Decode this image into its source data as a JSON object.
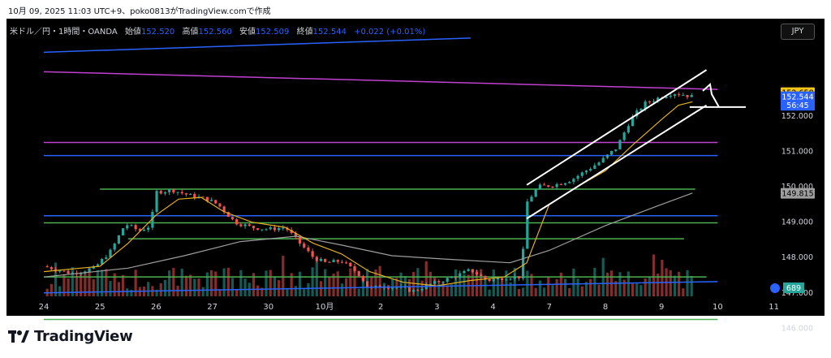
{
  "caption": "10月 09, 2025 11:03 UTC+9、poko0813がTradingView.comで作成",
  "legend": {
    "symbol": "米ドル／円・1時間・OANDA",
    "open_label": "始値",
    "open_value": "152.520",
    "high_label": "高値",
    "high_value": "152.560",
    "low_label": "安値",
    "low_value": "152.509",
    "close_label": "終値",
    "close_value": "152.544",
    "change": "+0.022 (+0.01%)"
  },
  "currency_button": "JPY",
  "brand": "TradingView",
  "colors": {
    "up": "#26a69a",
    "down": "#ef5350",
    "ma_short": "#e0b020",
    "ma_long": "#9e9e9e",
    "green_line": "#4caf50",
    "blue_line": "#2962ff",
    "magenta_line": "#c040d0",
    "channel": "#ffffff"
  },
  "chart_data": {
    "type": "candlestick",
    "symbol": "USD/JPY",
    "timeframe": "1h",
    "ylim": [
      146.1,
      153.9
    ],
    "price_ticks": [
      "152.000",
      "151.000",
      "150.000",
      "149.000",
      "148.000",
      "147.000",
      "146.000"
    ],
    "x_tick_labels": [
      "24",
      "25",
      "26",
      "27",
      "30",
      "10月",
      "2",
      "3",
      "4",
      "7",
      "8",
      "9",
      "10",
      "11"
    ],
    "close_path": [
      [
        0,
        147.75
      ],
      [
        0.5,
        147.55
      ],
      [
        0.9,
        147.7
      ],
      [
        1.2,
        148.2
      ],
      [
        1.45,
        148.95
      ],
      [
        1.7,
        148.75
      ],
      [
        1.9,
        148.9
      ],
      [
        2.0,
        149.85
      ],
      [
        2.3,
        149.9
      ],
      [
        2.6,
        149.75
      ],
      [
        2.9,
        149.65
      ],
      [
        3.1,
        149.5
      ],
      [
        3.4,
        149.0
      ],
      [
        3.7,
        148.85
      ],
      [
        4.0,
        148.8
      ],
      [
        4.3,
        148.85
      ],
      [
        4.5,
        148.5
      ],
      [
        4.8,
        148.0
      ],
      [
        5.0,
        147.85
      ],
      [
        5.3,
        147.9
      ],
      [
        5.6,
        147.55
      ],
      [
        5.8,
        147.1
      ],
      [
        6.0,
        147.2
      ],
      [
        6.3,
        147.15
      ],
      [
        6.6,
        147.05
      ],
      [
        6.8,
        147.2
      ],
      [
        7.1,
        147.35
      ],
      [
        7.3,
        147.45
      ],
      [
        7.6,
        147.65
      ],
      [
        7.9,
        147.35
      ],
      [
        8.3,
        147.45
      ],
      [
        8.5,
        147.45
      ],
      [
        8.6,
        149.55
      ],
      [
        8.8,
        150.0
      ],
      [
        9.1,
        150.05
      ],
      [
        9.4,
        150.2
      ],
      [
        9.6,
        150.4
      ],
      [
        9.9,
        150.7
      ],
      [
        10.2,
        151.1
      ],
      [
        10.45,
        151.9
      ],
      [
        10.7,
        152.35
      ],
      [
        11.0,
        152.55
      ],
      [
        11.2,
        152.65
      ],
      [
        11.4,
        152.6
      ],
      [
        11.55,
        152.54
      ]
    ],
    "ma_short_path": [
      [
        0,
        147.6
      ],
      [
        1.0,
        147.75
      ],
      [
        1.5,
        148.4
      ],
      [
        2.0,
        149.2
      ],
      [
        2.4,
        149.65
      ],
      [
        2.8,
        149.7
      ],
      [
        3.2,
        149.3
      ],
      [
        3.7,
        149.0
      ],
      [
        4.3,
        148.85
      ],
      [
        4.8,
        148.4
      ],
      [
        5.3,
        148.1
      ],
      [
        5.8,
        147.6
      ],
      [
        6.4,
        147.3
      ],
      [
        7.0,
        147.2
      ],
      [
        7.6,
        147.35
      ],
      [
        8.2,
        147.45
      ],
      [
        8.6,
        147.85
      ],
      [
        9.0,
        149.5
      ],
      [
        9.5,
        150.0
      ],
      [
        10.0,
        150.45
      ],
      [
        10.5,
        151.2
      ],
      [
        11.0,
        151.9
      ],
      [
        11.3,
        152.3
      ],
      [
        11.55,
        152.4
      ]
    ],
    "ma_long_path": [
      [
        0,
        147.45
      ],
      [
        1.5,
        147.7
      ],
      [
        2.5,
        148.05
      ],
      [
        3.5,
        148.45
      ],
      [
        4.5,
        148.6
      ],
      [
        5.3,
        148.35
      ],
      [
        6.2,
        148.05
      ],
      [
        7.2,
        147.95
      ],
      [
        8.3,
        147.85
      ],
      [
        9.0,
        148.2
      ],
      [
        10.0,
        148.9
      ],
      [
        11.0,
        149.5
      ],
      [
        11.55,
        149.82
      ]
    ],
    "horizontal_levels": [
      {
        "color": "green",
        "price": 149.93,
        "from": 1.0,
        "to": 11.6
      },
      {
        "color": "green",
        "price": 148.98,
        "from": 0,
        "to": 12.0
      },
      {
        "color": "green",
        "price": 148.53,
        "from": 1.5,
        "to": 11.4
      },
      {
        "color": "green",
        "price": 147.45,
        "from": 0,
        "to": 11.8
      },
      {
        "color": "green",
        "price": 146.25,
        "from": 0,
        "to": 12.0
      },
      {
        "color": "blue",
        "price": 149.18,
        "from": 0,
        "to": 12.0
      },
      {
        "color": "blue",
        "price": 150.88,
        "from": 0,
        "to": 12.0
      },
      {
        "color": "magenta",
        "price": 151.25,
        "from": 0,
        "to": 12.0
      }
    ],
    "trend_lines": [
      {
        "color": "blue",
        "from": [
          0,
          147.0
        ],
        "to": [
          12.0,
          147.32
        ]
      },
      {
        "color": "blue",
        "from": [
          0,
          153.8
        ],
        "to": [
          7.6,
          154.2
        ]
      },
      {
        "color": "magenta",
        "from": [
          0,
          153.25
        ],
        "to": [
          12.0,
          152.75
        ]
      },
      {
        "color": "white",
        "from": [
          8.6,
          150.05
        ],
        "to": [
          11.8,
          153.3
        ]
      },
      {
        "color": "white",
        "from": [
          8.6,
          149.1
        ],
        "to": [
          11.8,
          152.3
        ]
      },
      {
        "color": "white",
        "from": [
          11.5,
          152.25
        ],
        "to": [
          12.5,
          152.25
        ]
      }
    ],
    "price_labels": [
      {
        "text": "152.658",
        "bg": "#f5c518",
        "fg": "#000000",
        "price": 152.658
      },
      {
        "text": "152.544",
        "bg": "#2962ff",
        "fg": "#ffffff",
        "price": 152.544
      },
      {
        "text": "56:45",
        "bg": "#2962ff",
        "fg": "#ffffff",
        "price": 152.3
      },
      {
        "text": "149.815",
        "bg": "#9e9e9e",
        "fg": "#000000",
        "price": 149.815
      }
    ],
    "volume_label": "689"
  }
}
